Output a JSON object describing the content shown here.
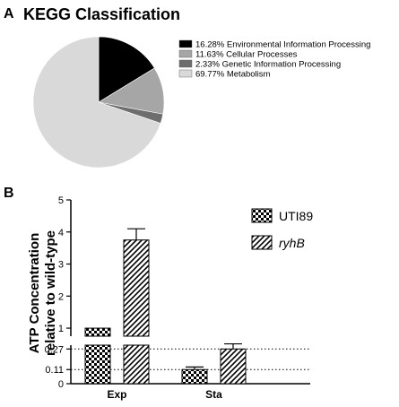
{
  "panels": {
    "a_label": "A",
    "b_label": "B"
  },
  "colors": {
    "environmental": "#000000",
    "cellular": "#a6a6a6",
    "genetic": "#6e6e6e",
    "metabolism": "#d9d9d9",
    "axis": "#000000",
    "reference_line": "#000000"
  },
  "chart_data": [
    {
      "type": "pie",
      "title": "KEGG Classification",
      "legend_position": "right",
      "slices": [
        {
          "label": "Environmental Information Processing",
          "percent_label": "16.28%",
          "value": 16.28,
          "color": "#000000"
        },
        {
          "label": "Cellular Processes",
          "percent_label": "11.63%",
          "value": 11.63,
          "color": "#a6a6a6"
        },
        {
          "label": "Genetic Information Processing",
          "percent_label": "2.33%",
          "value": 2.33,
          "color": "#6e6e6e"
        },
        {
          "label": "Metabolism",
          "percent_label": "69.77%",
          "value": 69.77,
          "color": "#d9d9d9"
        }
      ]
    },
    {
      "type": "bar",
      "ylabel_line1": "ATP Concentration",
      "ylabel_line2": "relative to wild-type",
      "categories": [
        "Exp",
        "Sta"
      ],
      "series": [
        {
          "name": "UTI89",
          "pattern": "checkered",
          "values": [
            1.0,
            0.11
          ],
          "error": [
            0.0,
            0.02
          ]
        },
        {
          "name": "ryhB",
          "pattern": "diagonal-hatch",
          "values": [
            3.75,
            0.27
          ],
          "error": [
            0.35,
            0.04
          ]
        }
      ],
      "y_axis_broken": true,
      "upper_segment": {
        "ylim": [
          0.75,
          5
        ],
        "ticks": [
          "1",
          "2",
          "3",
          "4",
          "5"
        ]
      },
      "lower_segment": {
        "ylim": [
          0,
          0.3
        ],
        "ticks": [
          "0",
          "0.11",
          "0.27"
        ]
      },
      "reference_lines": [
        0.11,
        0.27
      ],
      "legend_position": "right"
    }
  ]
}
